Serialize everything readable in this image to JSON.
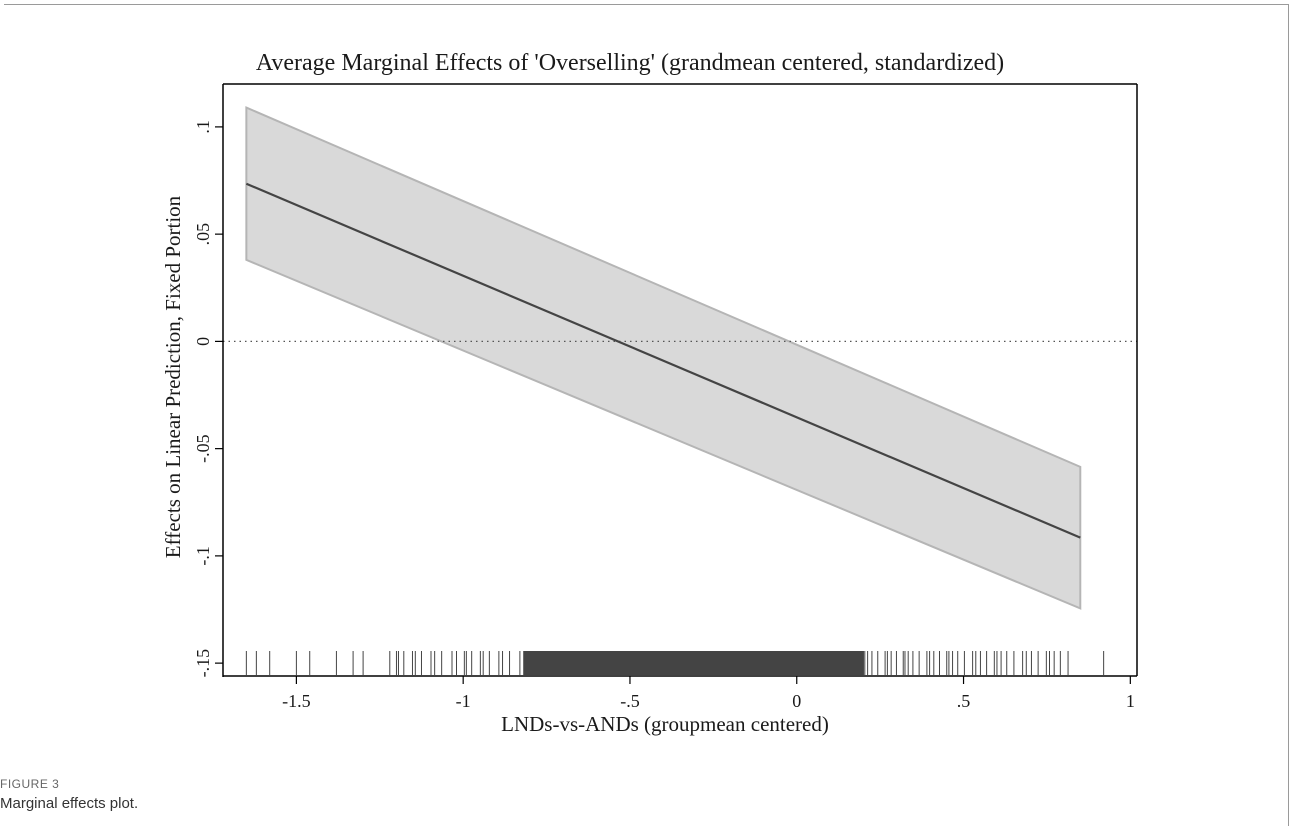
{
  "figure": {
    "label": "FIGURE 3",
    "caption": "Marginal effects plot."
  },
  "chart_data": {
    "type": "line",
    "title": "Average Marginal Effects of 'Overselling' (grandmean centered, standardized)",
    "xlabel": "LNDs-vs-ANDs (groupmean centered)",
    "ylabel": "Effects on Linear Prediction, Fixed Portion",
    "xlim": [
      -1.72,
      1.02
    ],
    "ylim": [
      -0.156,
      0.12
    ],
    "x_ticks": [
      -1.5,
      -1,
      -0.5,
      0,
      0.5,
      1
    ],
    "x_tick_labels": [
      "-1.5",
      "-1",
      "-.5",
      "0",
      ".5",
      "1"
    ],
    "y_ticks": [
      -0.15,
      -0.1,
      -0.05,
      0,
      0.05,
      0.1
    ],
    "y_tick_labels": [
      "-.15",
      "-.1",
      "-.05",
      "0",
      ".05",
      ".1"
    ],
    "reference_line": {
      "y": 0,
      "style": "dotted"
    },
    "series": [
      {
        "x": [
          -1.65,
          0.85
        ],
        "y": [
          0.0735,
          -0.0915
        ],
        "ci_lower": [
          0.038,
          -0.1245
        ],
        "ci_upper": [
          0.109,
          -0.0585
        ]
      }
    ],
    "rug": {
      "x_min": -1.65,
      "x_max": 0.92,
      "dense_range": [
        -0.82,
        0.2
      ],
      "sparse_points": [
        -1.65,
        -1.62,
        -1.58,
        -1.5,
        -1.46,
        -1.38,
        -1.33,
        -1.3,
        -1.22
      ],
      "outlier_points": [
        0.92
      ]
    },
    "grid": false,
    "legend": "none",
    "colors": {
      "line": "#444444",
      "band": "#d9d9d9",
      "band_edge": "#b5b5b5",
      "rug": "#444444",
      "axis": "#000000"
    }
  }
}
